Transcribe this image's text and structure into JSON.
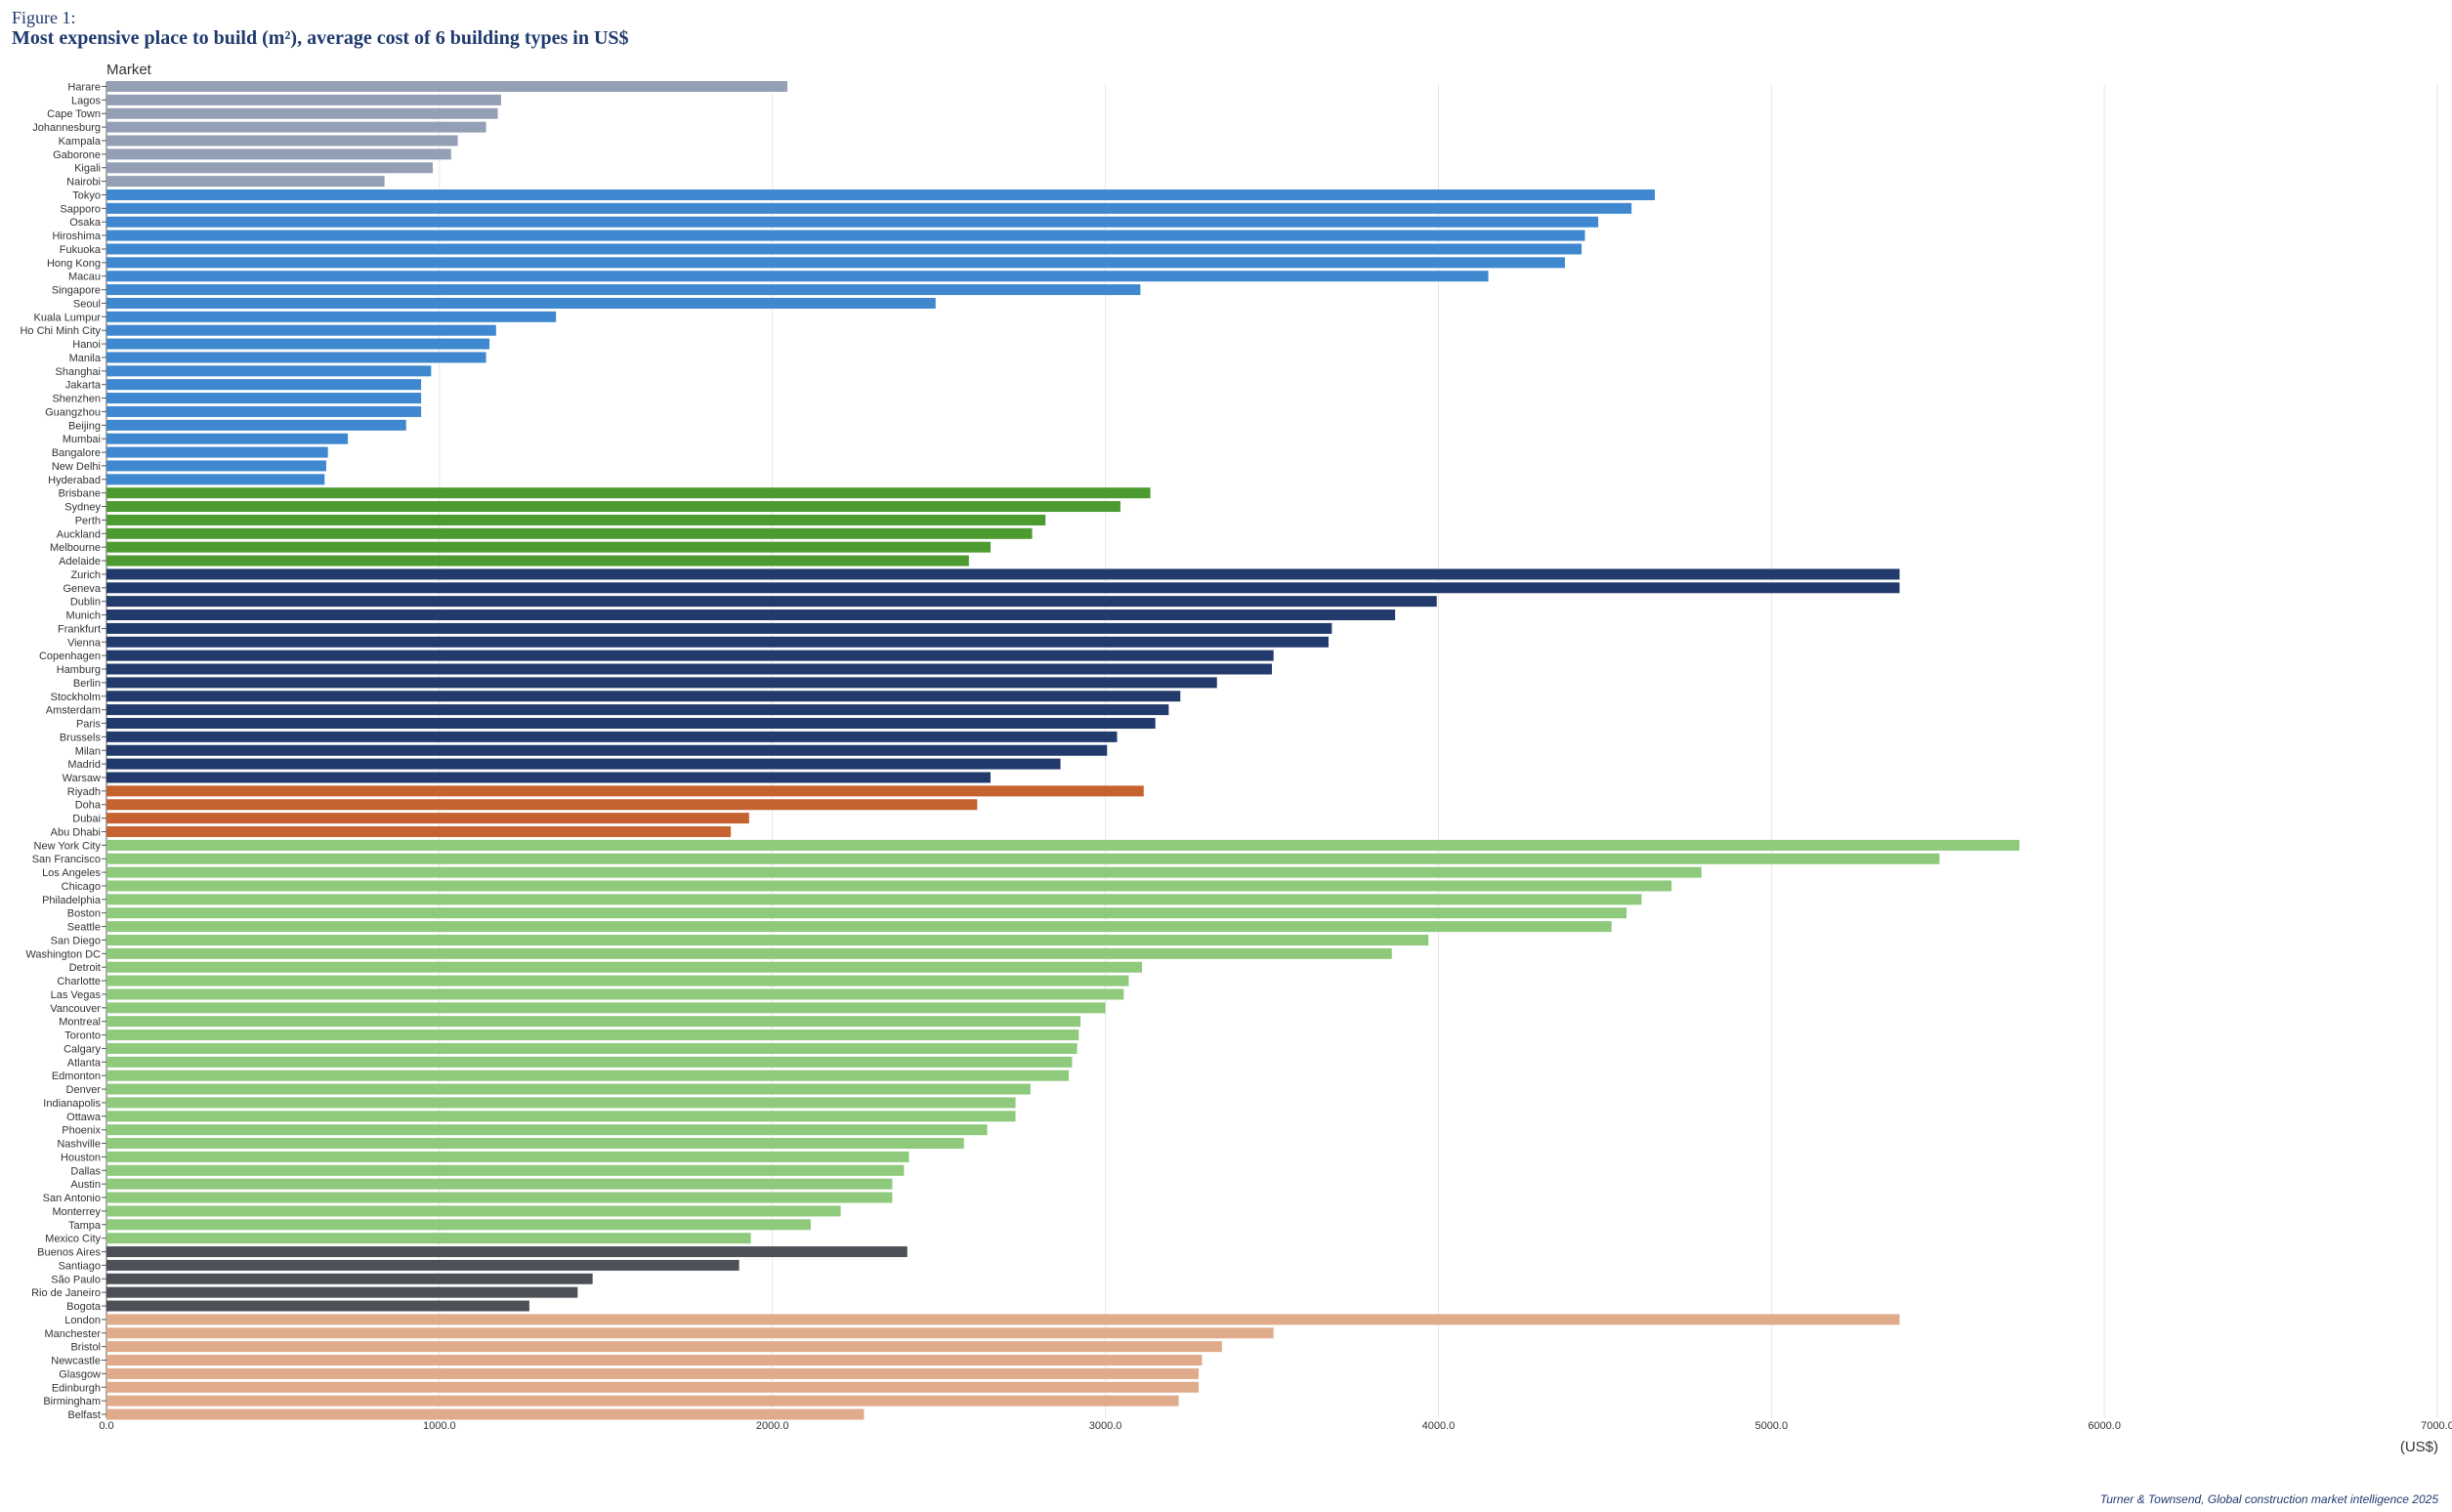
{
  "figure_label": "Figure 1:",
  "chart_data": {
    "type": "bar",
    "orientation": "horizontal",
    "title": "Most expensive place to build (m²), average cost of 6 building types in US$",
    "ylabel": "Market",
    "xlabel": "(US$)",
    "xlim": [
      0,
      7000
    ],
    "xticks": [
      "0.0",
      "1000.0",
      "2000.0",
      "3000.0",
      "4000.0",
      "5000.0",
      "6000.0",
      "7000.0"
    ],
    "grid": "vertical",
    "colors": {
      "africa": "#939fb5",
      "asia": "#3f88cf",
      "oceania": "#4d9a30",
      "europe": "#233b6c",
      "middle_east": "#c5622f",
      "north_america": "#8ec97c",
      "south_america": "#4d5157",
      "uk": "#e0ab8b"
    },
    "series": [
      {
        "group": "africa",
        "categories": [
          "Harare",
          "Lagos",
          "Cape Town",
          "Johannesburg",
          "Kampala",
          "Gaborone",
          "Kigali",
          "Nairobi"
        ],
        "values": [
          2045,
          1185,
          1175,
          1140,
          1055,
          1035,
          980,
          835
        ]
      },
      {
        "group": "asia",
        "categories": [
          "Tokyo",
          "Sapporo",
          "Osaka",
          "Hiroshima",
          "Fukuoka",
          "Hong Kong",
          "Macau",
          "Singapore",
          "Seoul",
          "Kuala Lumpur",
          "Ho Chi Minh City",
          "Hanoi",
          "Manila",
          "Shanghai",
          "Jakarta",
          "Shenzhen",
          "Guangzhou",
          "Beijing",
          "Mumbai",
          "Bangalore",
          "New Delhi",
          "Hyderabad"
        ],
        "values": [
          4650,
          4580,
          4480,
          4440,
          4430,
          4380,
          4150,
          3105,
          2490,
          1350,
          1170,
          1150,
          1140,
          975,
          945,
          945,
          945,
          900,
          725,
          665,
          660,
          655
        ]
      },
      {
        "group": "oceania",
        "categories": [
          "Brisbane",
          "Sydney",
          "Perth",
          "Auckland",
          "Melbourne",
          "Adelaide"
        ],
        "values": [
          3135,
          3045,
          2820,
          2780,
          2655,
          2590
        ]
      },
      {
        "group": "europe",
        "categories": [
          "Zurich",
          "Geneva",
          "Dublin",
          "Munich",
          "Frankfurt",
          "Vienna",
          "Copenhagen",
          "Hamburg",
          "Berlin",
          "Stockholm",
          "Amsterdam",
          "Paris",
          "Brussels",
          "Milan",
          "Madrid",
          "Warsaw"
        ],
        "values": [
          5385,
          5385,
          3995,
          3870,
          3680,
          3670,
          3505,
          3500,
          3335,
          3225,
          3190,
          3150,
          3035,
          3005,
          2865,
          2655
        ]
      },
      {
        "group": "middle_east",
        "categories": [
          "Riyadh",
          "Doha",
          "Dubai",
          "Abu Dhabi"
        ],
        "values": [
          3115,
          2615,
          1930,
          1875
        ]
      },
      {
        "group": "north_america",
        "categories": [
          "New York City",
          "San Francisco",
          "Los Angeles",
          "Chicago",
          "Philadelphia",
          "Boston",
          "Seattle",
          "San Diego",
          "Washington DC",
          "Detroit",
          "Charlotte",
          "Las Vegas",
          "Vancouver",
          "Montreal",
          "Toronto",
          "Calgary",
          "Atlanta",
          "Edmonton",
          "Denver",
          "Indianapolis",
          "Ottawa",
          "Phoenix",
          "Nashville",
          "Houston",
          "Dallas",
          "Austin",
          "San Antonio",
          "Monterrey",
          "Tampa",
          "Mexico City"
        ],
        "values": [
          5745,
          5505,
          4790,
          4700,
          4610,
          4565,
          4520,
          3970,
          3860,
          3110,
          3070,
          3055,
          3000,
          2925,
          2920,
          2915,
          2900,
          2890,
          2775,
          2730,
          2730,
          2645,
          2575,
          2410,
          2395,
          2360,
          2360,
          2205,
          2115,
          1935
        ]
      },
      {
        "group": "south_america",
        "categories": [
          "Buenos Aires",
          "Santiago",
          "São Paulo",
          "Rio de Janeiro",
          "Bogota"
        ],
        "values": [
          2405,
          1900,
          1460,
          1415,
          1270
        ]
      },
      {
        "group": "uk",
        "categories": [
          "London",
          "Manchester",
          "Bristol",
          "Newcastle",
          "Glasgow",
          "Edinburgh",
          "Birmingham",
          "Belfast"
        ],
        "values": [
          5385,
          3505,
          3350,
          3290,
          3280,
          3280,
          3220,
          2275
        ]
      }
    ]
  },
  "source": "Turner & Townsend, Global construction market intelligence 2025"
}
